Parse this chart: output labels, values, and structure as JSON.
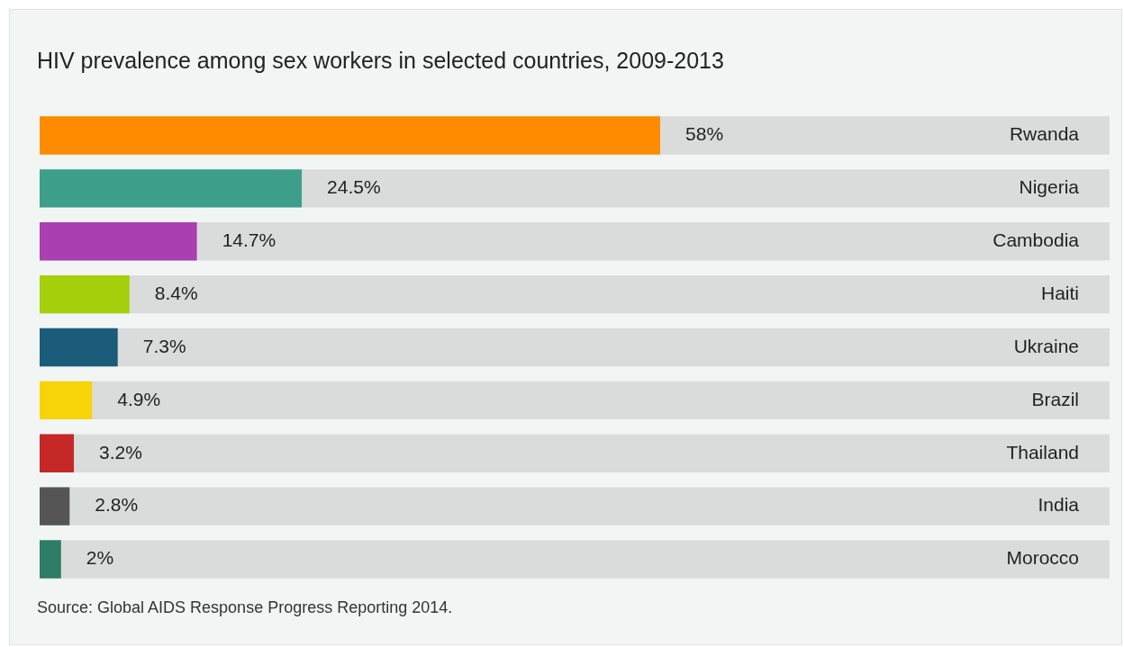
{
  "chart_data": {
    "type": "bar",
    "orientation": "horizontal",
    "title": "HIV prevalence among sex workers in selected countries, 2009-2013",
    "categories": [
      "Rwanda",
      "Nigeria",
      "Cambodia",
      "Haiti",
      "Ukraine",
      "Brazil",
      "Thailand",
      "India",
      "Morocco"
    ],
    "values": [
      58,
      24.5,
      14.7,
      8.4,
      7.3,
      4.9,
      3.2,
      2.8,
      2
    ],
    "value_labels": [
      "58%",
      "24.5%",
      "14.7%",
      "8.4%",
      "7.3%",
      "4.9%",
      "3.2%",
      "2.8%",
      "2%"
    ],
    "colors": [
      "#ff8c00",
      "#3d9e8a",
      "#a93fb0",
      "#a6cf0b",
      "#1a5c7a",
      "#f7d308",
      "#c62828",
      "#555555",
      "#2e7d66"
    ],
    "xlim": [
      0,
      100
    ],
    "tick_labels": "y",
    "grid": false,
    "legend": false,
    "annotations": [
      "Source: Global AIDS Response Progress Reporting 2014."
    ]
  }
}
